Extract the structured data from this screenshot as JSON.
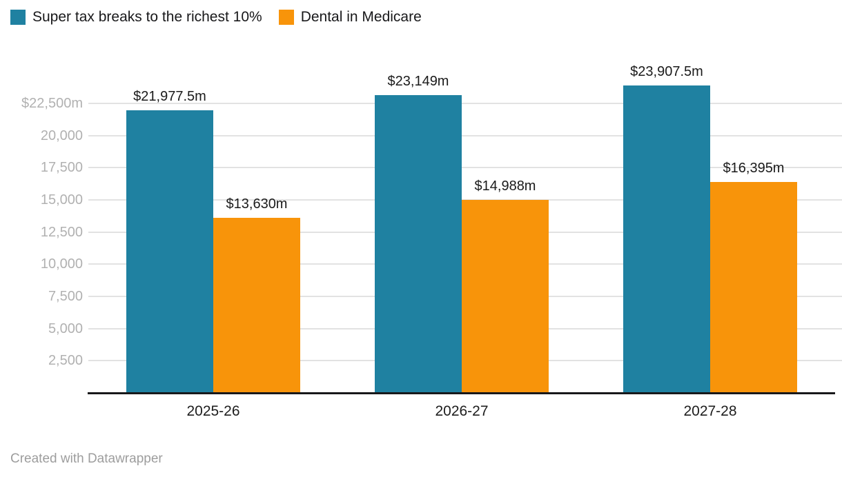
{
  "legend": {
    "items": [
      {
        "label": "Super tax breaks to the richest 10%",
        "color": "#1f81a1"
      },
      {
        "label": "Dental in Medicare",
        "color": "#f8940a"
      }
    ]
  },
  "footer": {
    "credit": "Created with Datawrapper"
  },
  "colors": {
    "series_teal": "#1f81a1",
    "series_orange": "#f8940a",
    "gridline": "#e2e2e2",
    "axis_line": "#18181a",
    "y_tick_text": "#b1b1b1",
    "x_tick_text": "#1d1d1d",
    "value_label_text": "#1a1a1a",
    "credit_text": "#9d9d9d",
    "background": "#ffffff"
  },
  "chart_data": {
    "type": "bar",
    "grouped": true,
    "title": "",
    "xlabel": "",
    "ylabel": "",
    "categories": [
      "2025-26",
      "2026-27",
      "2027-28"
    ],
    "series": [
      {
        "name": "Super tax breaks to the richest 10%",
        "color": "#1f81a1",
        "values": [
          21977.5,
          23149,
          23907.5
        ],
        "value_labels": [
          "$21,977.5m",
          "$23,149m",
          "$23,907.5m"
        ]
      },
      {
        "name": "Dental in Medicare",
        "color": "#f8940a",
        "values": [
          13630,
          14988,
          16395
        ],
        "value_labels": [
          "$13,630m",
          "$14,988m",
          "$16,395m"
        ]
      }
    ],
    "y_axis": {
      "min": 0,
      "max": 22500,
      "unit": "m",
      "grid": true,
      "ticks": [
        22500,
        20000,
        17500,
        15000,
        12500,
        10000,
        7500,
        5000,
        2500
      ],
      "tick_labels": [
        "$22,500m",
        "20,000",
        "17,500",
        "15,000",
        "12,500",
        "10,000",
        "7,500",
        "5,000",
        "2,500"
      ]
    },
    "legend_position": "top-left",
    "value_labels_shown": true
  }
}
